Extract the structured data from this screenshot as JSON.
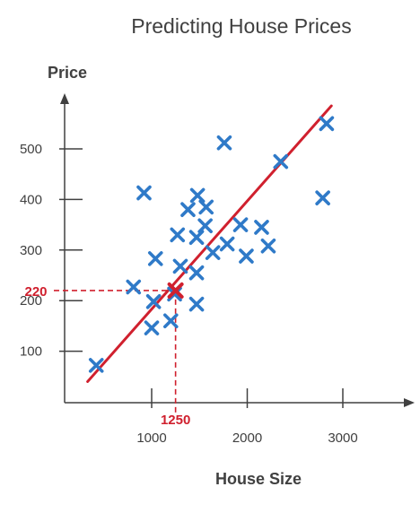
{
  "chart_data": {
    "type": "scatter",
    "title": "Predicting House Prices",
    "xlabel": "House Size",
    "ylabel": "Price",
    "xlim": [
      300,
      3700
    ],
    "ylim": [
      0,
      600
    ],
    "x_ticks": [
      1000,
      2000,
      3000
    ],
    "y_ticks": [
      100,
      200,
      300,
      400,
      500
    ],
    "grid": false,
    "points": [
      {
        "x": 420,
        "y": 72
      },
      {
        "x": 810,
        "y": 227
      },
      {
        "x": 920,
        "y": 413
      },
      {
        "x": 1000,
        "y": 146
      },
      {
        "x": 1020,
        "y": 198
      },
      {
        "x": 1040,
        "y": 283
      },
      {
        "x": 1200,
        "y": 160
      },
      {
        "x": 1240,
        "y": 213
      },
      {
        "x": 1270,
        "y": 330
      },
      {
        "x": 1300,
        "y": 268
      },
      {
        "x": 1380,
        "y": 380
      },
      {
        "x": 1470,
        "y": 193
      },
      {
        "x": 1470,
        "y": 255
      },
      {
        "x": 1470,
        "y": 325
      },
      {
        "x": 1480,
        "y": 408
      },
      {
        "x": 1560,
        "y": 348
      },
      {
        "x": 1570,
        "y": 385
      },
      {
        "x": 1640,
        "y": 295
      },
      {
        "x": 1760,
        "y": 512
      },
      {
        "x": 1790,
        "y": 312
      },
      {
        "x": 1930,
        "y": 350
      },
      {
        "x": 1990,
        "y": 288
      },
      {
        "x": 2150,
        "y": 345
      },
      {
        "x": 2220,
        "y": 308
      },
      {
        "x": 2350,
        "y": 475
      },
      {
        "x": 2790,
        "y": 403
      },
      {
        "x": 2830,
        "y": 550
      }
    ],
    "trend_line": {
      "x1": 330,
      "y1": 40,
      "x2": 2880,
      "y2": 585
    },
    "highlight": {
      "x": 1250,
      "y": 220,
      "x_label": "1250",
      "y_label": "220"
    },
    "colors": {
      "points": "#2f7ac8",
      "trend_line": "#d0202e",
      "highlight": "#d0202e",
      "axis": "#404040",
      "text": "#404040"
    }
  }
}
